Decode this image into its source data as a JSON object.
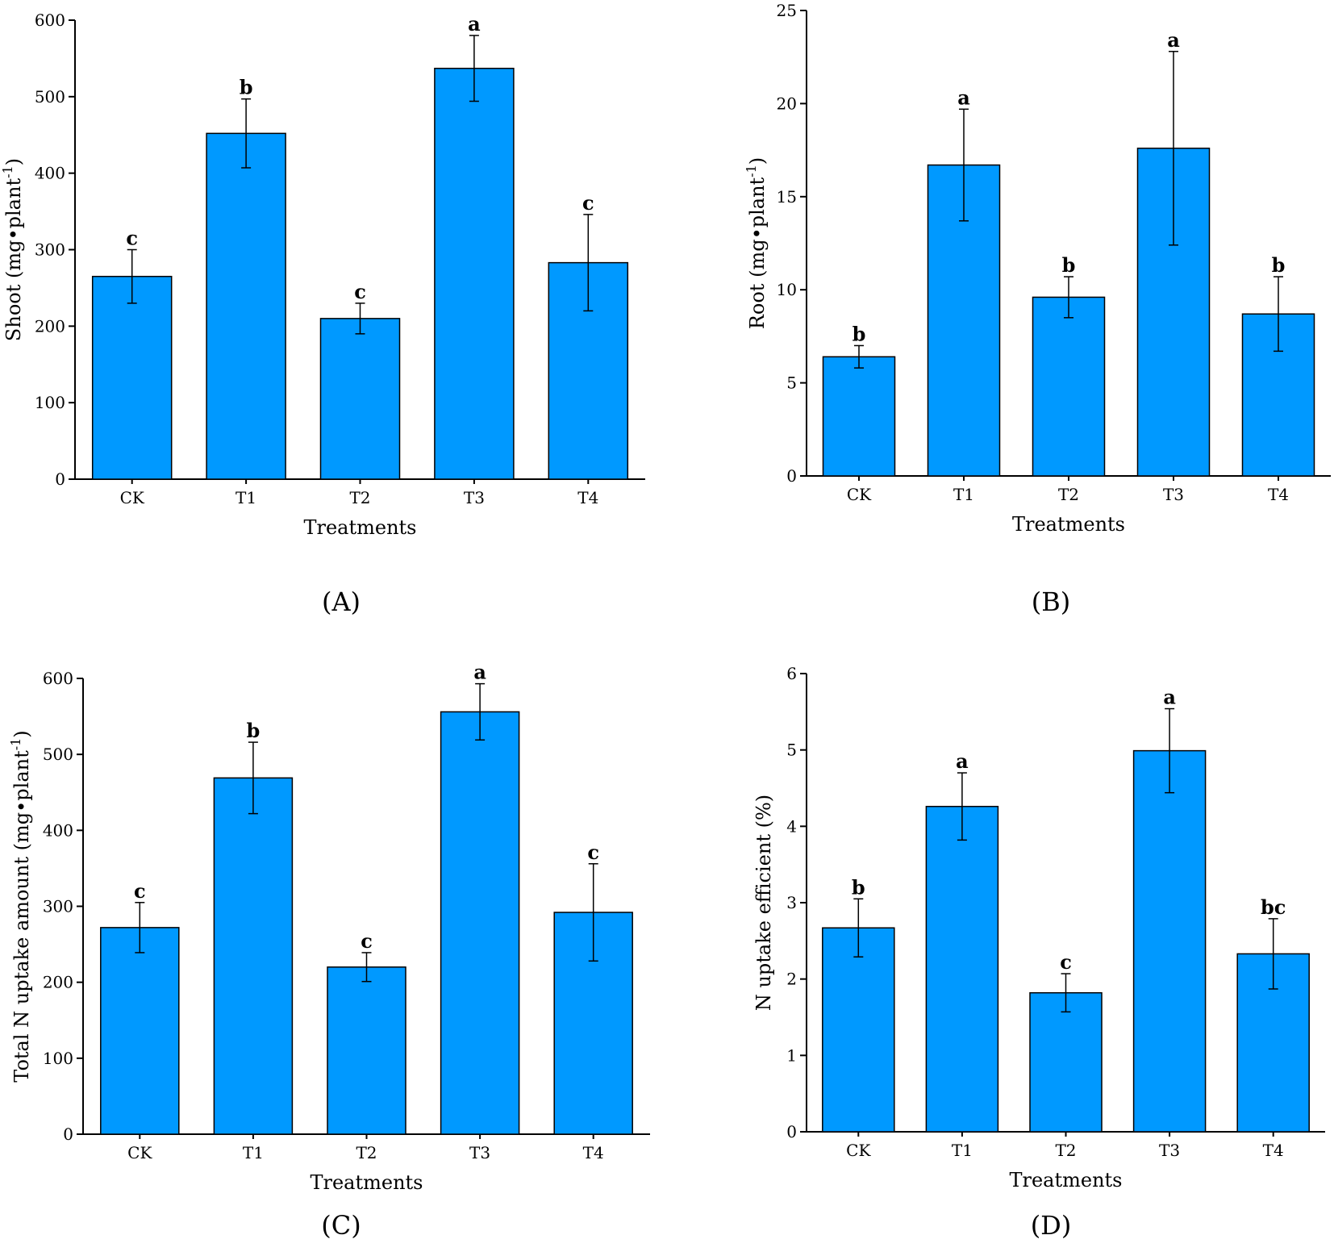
{
  "figure": {
    "bar_color": "#0099ff",
    "bar_stroke": "#000000"
  },
  "chart_data": [
    {
      "id": "A",
      "type": "bar",
      "panel_label": "(A)",
      "xlabel": "Treatments",
      "ylabel": "Shoot (mg•plant",
      "ylabel_sup": "-1",
      "ylabel_close": ")",
      "ylim": [
        0,
        600
      ],
      "yticks": [
        0,
        100,
        200,
        300,
        400,
        500,
        600
      ],
      "categories": [
        "CK",
        "T1",
        "T2",
        "T3",
        "T4"
      ],
      "values": [
        265,
        452,
        210,
        537,
        283
      ],
      "errors": [
        35,
        45,
        20,
        43,
        63
      ],
      "letters": [
        "c",
        "b",
        "c",
        "a",
        "c"
      ]
    },
    {
      "id": "B",
      "type": "bar",
      "panel_label": "(B)",
      "xlabel": "Treatments",
      "ylabel": "Root (mg•plant",
      "ylabel_sup": "-1",
      "ylabel_close": ")",
      "ylim": [
        0,
        25
      ],
      "yticks": [
        0,
        5,
        10,
        15,
        20,
        25
      ],
      "categories": [
        "CK",
        "T1",
        "T2",
        "T3",
        "T4"
      ],
      "values": [
        6.4,
        16.7,
        9.6,
        17.6,
        8.7
      ],
      "errors": [
        0.6,
        3.0,
        1.1,
        5.2,
        2.0
      ],
      "letters": [
        "b",
        "a",
        "b",
        "a",
        "b"
      ]
    },
    {
      "id": "C",
      "type": "bar",
      "panel_label": "(C)",
      "xlabel": "Treatments",
      "ylabel": "Total N uptake amount (mg•plant",
      "ylabel_sup": "-1",
      "ylabel_close": ")",
      "ylim": [
        0,
        600
      ],
      "yticks": [
        0,
        100,
        200,
        300,
        400,
        500,
        600
      ],
      "categories": [
        "CK",
        "T1",
        "T2",
        "T3",
        "T4"
      ],
      "values": [
        272,
        469,
        220,
        556,
        292
      ],
      "errors": [
        33,
        47,
        19,
        37,
        64
      ],
      "letters": [
        "c",
        "b",
        "c",
        "a",
        "c"
      ]
    },
    {
      "id": "D",
      "type": "bar",
      "panel_label": "(D)",
      "xlabel": "Treatments",
      "ylabel": "N uptake efficient (%)",
      "ylabel_sup": "",
      "ylabel_close": "",
      "ylim": [
        0,
        6
      ],
      "yticks": [
        0,
        1,
        2,
        3,
        4,
        5,
        6
      ],
      "categories": [
        "CK",
        "T1",
        "T2",
        "T3",
        "T4"
      ],
      "values": [
        2.67,
        4.26,
        1.82,
        4.99,
        2.33
      ],
      "errors": [
        0.38,
        0.44,
        0.25,
        0.55,
        0.46
      ],
      "letters": [
        "b",
        "a",
        "c",
        "a",
        "bc"
      ]
    }
  ]
}
